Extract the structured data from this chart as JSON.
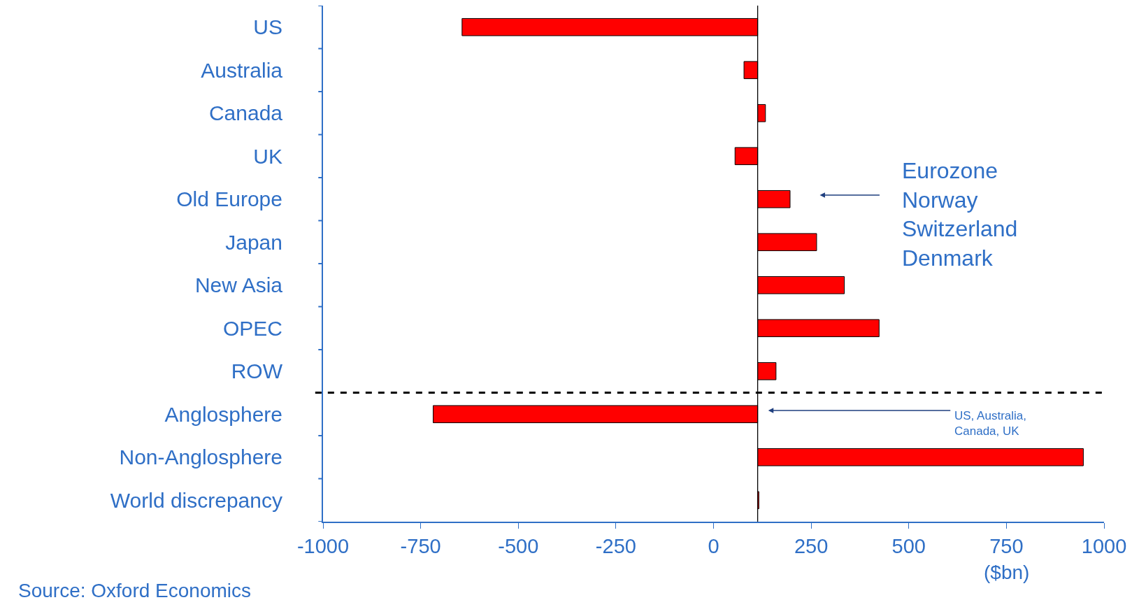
{
  "chart_data": {
    "type": "bar",
    "orientation": "horizontal",
    "xlabel": "($bn)",
    "categories": [
      "US",
      "Australia",
      "Canada",
      "UK",
      "Old Europe",
      "Japan",
      "New Asia",
      "OPEC",
      "ROW",
      "Anglosphere",
      "Non-Anglosphere",
      "World discrepancy"
    ],
    "values": [
      -757,
      -35,
      20,
      -58,
      83,
      151,
      222,
      311,
      47,
      -831,
      834,
      3
    ],
    "base": [
      113,
      113,
      113,
      113,
      113,
      113,
      113,
      113,
      113,
      113,
      113,
      113
    ],
    "color": "#ff0000",
    "xlim": [
      -1000,
      1000
    ],
    "xticks": [
      -1000,
      -750,
      -500,
      -250,
      0,
      250,
      500,
      750,
      1000
    ],
    "ref_lines": [
      {
        "axis": "x",
        "value": 113,
        "color": "#000000",
        "line_style": "solid"
      }
    ],
    "annotations": [
      "Eurozone\nNorway\nSwitzerland\nDenmark",
      "US, Australia,\nCanada, UK",
      "Source: Oxford Economics"
    ]
  }
}
